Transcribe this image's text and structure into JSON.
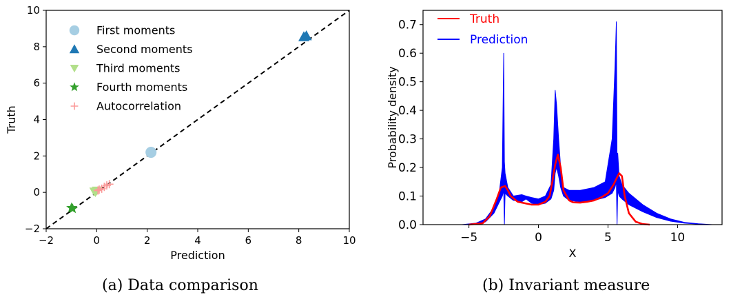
{
  "chart_data": [
    {
      "type": "scatter",
      "xlabel": "Prediction",
      "ylabel": "Truth",
      "xlim": [
        -2,
        10
      ],
      "ylim": [
        -2,
        10
      ],
      "xticks": [
        "−2",
        "0",
        "2",
        "4",
        "6",
        "8",
        "10"
      ],
      "yticks": [
        "−2",
        "0",
        "2",
        "4",
        "6",
        "8",
        "10"
      ],
      "grid": false,
      "legend": "top-left",
      "reference_line": {
        "from": [
          -2,
          -2
        ],
        "to": [
          10,
          10
        ],
        "style": "dashed",
        "color": "#000000"
      },
      "series": [
        {
          "name": "First moments",
          "marker": "circle",
          "color": "#a6cee3",
          "points": [
            [
              2.15,
              2.2
            ]
          ]
        },
        {
          "name": "Second moments",
          "marker": "triangle-up",
          "color": "#1f78b4",
          "points": [
            [
              8.2,
              8.55
            ],
            [
              8.3,
              8.6
            ]
          ]
        },
        {
          "name": "Third moments",
          "marker": "triangle-down",
          "color": "#b2df8a",
          "points": [
            [
              -0.1,
              0.05
            ],
            [
              0.0,
              0.1
            ],
            [
              -0.05,
              0.0
            ]
          ]
        },
        {
          "name": "Fourth moments",
          "marker": "star",
          "color": "#33a02c",
          "points": [
            [
              -1.0,
              -0.85
            ],
            [
              -0.95,
              -0.9
            ]
          ]
        },
        {
          "name": "Autocorrelation",
          "marker": "plus",
          "color": "#fb9a99",
          "points": [
            [
              0.05,
              0.1
            ],
            [
              0.1,
              0.15
            ],
            [
              0.2,
              0.2
            ],
            [
              0.3,
              0.3
            ],
            [
              0.4,
              0.38
            ],
            [
              0.5,
              0.45
            ]
          ]
        }
      ]
    },
    {
      "type": "line",
      "xlabel": "X",
      "ylabel": "Probability density",
      "xlim": [
        -8.3,
        13.2
      ],
      "ylim": [
        0,
        0.75
      ],
      "xticks": [
        {
          "value": -5,
          "label": "−5"
        },
        {
          "value": 0,
          "label": "0"
        },
        {
          "value": 5,
          "label": "5"
        },
        {
          "value": 10,
          "label": "10"
        }
      ],
      "yticks": [
        {
          "value": 0.0,
          "label": "0.0"
        },
        {
          "value": 0.1,
          "label": "0.1"
        },
        {
          "value": 0.2,
          "label": "0.2"
        },
        {
          "value": 0.3,
          "label": "0.3"
        },
        {
          "value": 0.4,
          "label": "0.4"
        },
        {
          "value": 0.5,
          "label": "0.5"
        },
        {
          "value": 0.6,
          "label": "0.6"
        },
        {
          "value": 0.7,
          "label": "0.7"
        }
      ],
      "grid": false,
      "legend": "top-left",
      "series": [
        {
          "name": "Truth",
          "color": "#ff0000",
          "x": [
            -5,
            -4,
            -3.5,
            -3,
            -2.7,
            -2.4,
            -2.2,
            -2.0,
            -1.5,
            -1.0,
            -0.5,
            0,
            0.5,
            0.8,
            1.0,
            1.2,
            1.4,
            1.6,
            1.8,
            2.2,
            2.5,
            3.0,
            3.5,
            4.0,
            4.5,
            5.0,
            5.4,
            5.8,
            6.0,
            6.2,
            6.5,
            7.0,
            7.5,
            8.0
          ],
          "y": [
            0.0,
            0.005,
            0.03,
            0.09,
            0.13,
            0.135,
            0.12,
            0.1,
            0.08,
            0.075,
            0.07,
            0.07,
            0.08,
            0.1,
            0.15,
            0.21,
            0.245,
            0.2,
            0.12,
            0.085,
            0.078,
            0.077,
            0.08,
            0.085,
            0.095,
            0.11,
            0.14,
            0.18,
            0.17,
            0.1,
            0.04,
            0.01,
            0.002,
            0.0
          ]
        },
        {
          "name": "Prediction",
          "color": "#0000ff",
          "x": [
            -7.5,
            -5.5,
            -4.5,
            -3.8,
            -3.2,
            -2.8,
            -2.6,
            -2.5,
            -2.45,
            -2.4,
            -2.2,
            -1.8,
            -1.2,
            -0.9,
            -0.5,
            0,
            0.5,
            0.9,
            1.1,
            1.2,
            1.3,
            1.45,
            1.6,
            1.8,
            2.2,
            3.0,
            4.0,
            4.8,
            5.3,
            5.5,
            5.6,
            5.65,
            5.7,
            5.8,
            6.0,
            6.5,
            7.5,
            8.5,
            9.5,
            10.5,
            11.5,
            12.5
          ],
          "lower": [
            0.0,
            0.0,
            0.002,
            0.01,
            0.04,
            0.08,
            0.1,
            0.12,
            0.0,
            0.11,
            0.1,
            0.085,
            0.08,
            0.09,
            0.075,
            0.07,
            0.075,
            0.09,
            0.12,
            0.18,
            0.2,
            0.17,
            0.13,
            0.1,
            0.085,
            0.08,
            0.085,
            0.095,
            0.11,
            0.13,
            0.15,
            0.0,
            0.12,
            0.1,
            0.09,
            0.07,
            0.045,
            0.025,
            0.012,
            0.005,
            0.002,
            0.0
          ],
          "upper": [
            0.0,
            0.0,
            0.005,
            0.02,
            0.06,
            0.12,
            0.2,
            0.6,
            0.22,
            0.18,
            0.13,
            0.1,
            0.105,
            0.1,
            0.095,
            0.09,
            0.1,
            0.14,
            0.3,
            0.47,
            0.42,
            0.3,
            0.2,
            0.13,
            0.12,
            0.12,
            0.13,
            0.15,
            0.3,
            0.55,
            0.71,
            0.2,
            0.25,
            0.17,
            0.14,
            0.11,
            0.07,
            0.04,
            0.02,
            0.008,
            0.003,
            0.0
          ]
        }
      ]
    }
  ],
  "captions": {
    "a": "(a) Data comparison",
    "b": "(b) Invariant measure"
  }
}
